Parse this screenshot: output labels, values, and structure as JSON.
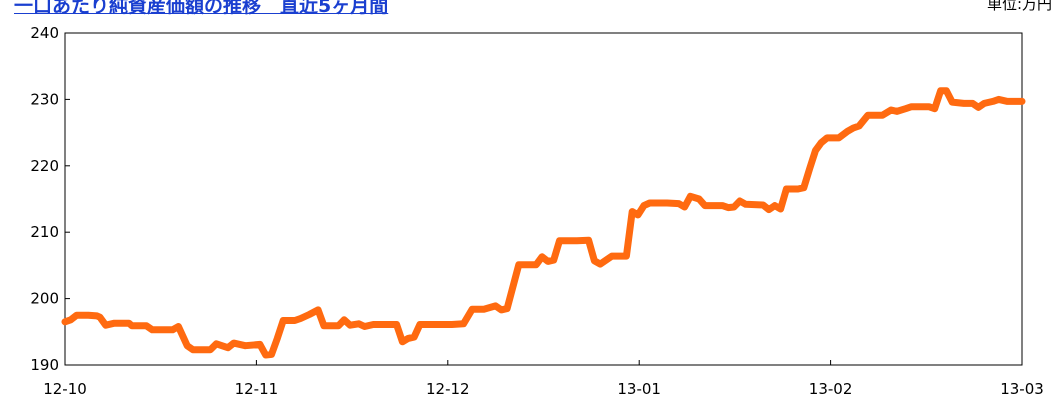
{
  "chart_data": {
    "type": "line",
    "title": "一口あたり純資産価額の推移　直近5ヶ月間",
    "unit_label": "単位:万円",
    "xlabel": "",
    "ylabel": "",
    "ylim": [
      190,
      240
    ],
    "yticks": [
      190,
      200,
      210,
      220,
      230,
      240
    ],
    "xticks": [
      "12-10",
      "12-11",
      "12-12",
      "13-01",
      "13-02",
      "13-03"
    ],
    "xlim": [
      "12-10-01",
      "13-03-01"
    ],
    "grid": false,
    "legend": "none",
    "line_color": "#ff6a10",
    "series": [
      {
        "values": [
          [
            "12-10-01",
            196.5
          ],
          [
            "12-10-03",
            196.8
          ],
          [
            "12-10-05",
            197.5
          ],
          [
            "12-10-09",
            197.5
          ],
          [
            "12-10-12",
            197.4
          ],
          [
            "12-10-13",
            197.2
          ],
          [
            "12-10-15",
            196.0
          ],
          [
            "12-10-18",
            196.3
          ],
          [
            "12-10-23",
            196.3
          ],
          [
            "12-10-24",
            195.9
          ],
          [
            "12-10-29",
            195.9
          ],
          [
            "12-10-31",
            195.3
          ],
          [
            "12-11-07",
            195.3
          ],
          [
            "12-11-09",
            195.8
          ],
          [
            "12-11-12",
            192.9
          ],
          [
            "12-11-14",
            192.3
          ],
          [
            "12-11-20",
            192.3
          ],
          [
            "12-11-22",
            193.2
          ],
          [
            "12-11-26",
            192.6
          ],
          [
            "12-11-28",
            193.3
          ],
          [
            "12-12-01",
            192.9
          ],
          [
            "12-12-06",
            193.1
          ],
          [
            "12-12-08",
            191.5
          ],
          [
            "12-12-10",
            191.6
          ],
          [
            "12-12-12",
            194.0
          ],
          [
            "12-12-14",
            196.7
          ],
          [
            "12-12-18",
            196.7
          ],
          [
            "12-12-20",
            197.0
          ],
          [
            "12-12-23",
            197.6
          ],
          [
            "12-12-26",
            198.3
          ],
          [
            "12-12-28",
            195.9
          ],
          [
            "12-01-02",
            195.9
          ],
          [
            "12-01-04",
            196.8
          ],
          [
            "12-01-06",
            196.0
          ],
          [
            "12-01-09",
            196.2
          ],
          [
            "12-01-11",
            195.8
          ],
          [
            "12-01-14",
            196.1
          ],
          [
            "12-01-22",
            196.1
          ],
          [
            "12-01-24",
            193.5
          ],
          [
            "12-01-26",
            194.0
          ],
          [
            "12-01-28",
            194.2
          ],
          [
            "12-01-30",
            196.1
          ],
          [
            "12-02-10",
            196.1
          ],
          [
            "12-02-14",
            196.2
          ],
          [
            "12-02-17",
            198.4
          ],
          [
            "12-02-21",
            198.4
          ],
          [
            "12-02-25",
            198.9
          ],
          [
            "12-02-27",
            198.3
          ],
          [
            "12-02-29",
            198.5
          ],
          [
            "12-03-02",
            205.1
          ],
          [
            "12-03-08",
            205.1
          ],
          [
            "12-03-10",
            206.3
          ],
          [
            "12-03-12",
            205.6
          ],
          [
            "12-03-14",
            205.8
          ],
          [
            "12-03-16",
            208.7
          ],
          [
            "12-03-22",
            208.7
          ],
          [
            "12-03-26",
            208.8
          ],
          [
            "12-03-28",
            205.7
          ],
          [
            "12-03-30",
            205.2
          ],
          [
            "12-04-03",
            206.4
          ],
          [
            "12-04-08",
            206.4
          ],
          [
            "12-04-10",
            213.1
          ],
          [
            "12-04-12",
            212.6
          ],
          [
            "12-04-14",
            214.0
          ],
          [
            "12-04-16",
            214.4
          ],
          [
            "12-04-22",
            214.4
          ],
          [
            "12-04-26",
            214.3
          ],
          [
            "12-04-28",
            213.8
          ],
          [
            "12-04-30",
            215.4
          ],
          [
            "12-05-02",
            215.0
          ],
          [
            "12-05-04",
            214.0
          ],
          [
            "12-05-10",
            214.0
          ],
          [
            "12-05-12",
            213.7
          ],
          [
            "12-05-14",
            213.8
          ],
          [
            "12-05-16",
            214.7
          ],
          [
            "12-05-18",
            214.2
          ],
          [
            "12-05-24",
            214.1
          ],
          [
            "12-05-26",
            213.4
          ],
          [
            "12-05-28",
            214.0
          ],
          [
            "12-05-30",
            213.5
          ],
          [
            "12-06-01",
            216.5
          ],
          [
            "12-06-05",
            216.5
          ],
          [
            "12-06-07",
            216.7
          ],
          [
            "12-06-09",
            219.6
          ],
          [
            "12-06-11",
            222.3
          ],
          [
            "12-06-13",
            223.5
          ],
          [
            "12-06-15",
            224.2
          ],
          [
            "12-06-19",
            224.2
          ],
          [
            "12-06-22",
            225.2
          ],
          [
            "12-06-24",
            225.7
          ],
          [
            "12-06-26",
            226.0
          ],
          [
            "12-06-29",
            227.6
          ],
          [
            "12-07-03",
            227.6
          ],
          [
            "12-07-06",
            228.4
          ],
          [
            "12-07-08",
            228.2
          ],
          [
            "12-07-11",
            228.6
          ],
          [
            "12-07-13",
            228.9
          ],
          [
            "12-07-19",
            228.9
          ],
          [
            "12-07-21",
            228.6
          ],
          [
            "12-07-23",
            231.3
          ],
          [
            "12-07-25",
            231.3
          ],
          [
            "12-07-27",
            229.6
          ],
          [
            "12-07-31",
            229.4
          ],
          [
            "12-08-03",
            229.4
          ],
          [
            "12-08-05",
            228.8
          ],
          [
            "12-08-07",
            229.4
          ],
          [
            "12-08-10",
            229.7
          ],
          [
            "12-08-12",
            230.0
          ],
          [
            "12-08-15",
            229.7
          ],
          [
            "12-08-20",
            229.7
          ]
        ]
      }
    ]
  }
}
